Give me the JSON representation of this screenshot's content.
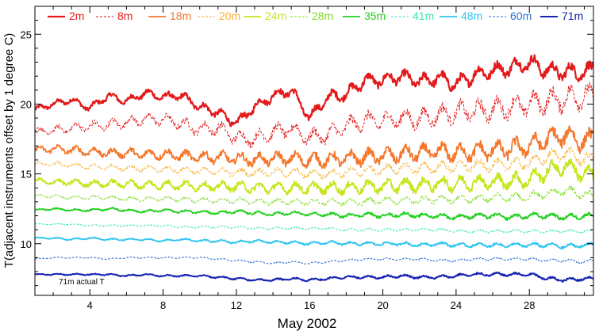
{
  "chart_data": {
    "type": "line",
    "title": "",
    "xlabel": "May 2002",
    "ylabel": "T(adjacent instruments offset by 1 degree C)",
    "xlim": [
      1,
      31.5
    ],
    "ylim": [
      6.3,
      27
    ],
    "x_ticks": [
      4,
      8,
      12,
      16,
      20,
      24,
      28
    ],
    "y_ticks": [
      10,
      15,
      20,
      25
    ],
    "annotation": "71m actual T",
    "series": [
      {
        "name": "2m",
        "color": "#e31a1c",
        "dash": "solid",
        "width": 2.2,
        "x": [
          1,
          2,
          3,
          4,
          5,
          6,
          7,
          8,
          9,
          10,
          11,
          12,
          13,
          14,
          15,
          16,
          17,
          18,
          19,
          20,
          21,
          22,
          23,
          24,
          25,
          26,
          27,
          28,
          29,
          30,
          31,
          31.5
        ],
        "values": [
          19.6,
          20.0,
          20.3,
          19.7,
          20.6,
          20.2,
          20.8,
          20.5,
          20.6,
          19.8,
          19.4,
          18.6,
          19.8,
          20.6,
          21.0,
          19.0,
          20.5,
          20.7,
          21.7,
          21.7,
          22.0,
          21.6,
          21.9,
          21.4,
          22.1,
          22.4,
          22.6,
          23.0,
          22.4,
          22.3,
          22.3,
          22.4
        ]
      },
      {
        "name": "8m",
        "color": "#e31a1c",
        "dash": "3,2",
        "width": 1.0,
        "x": [
          1,
          2,
          3,
          4,
          5,
          6,
          7,
          8,
          9,
          10,
          11,
          12,
          13,
          14,
          15,
          16,
          17,
          18,
          19,
          20,
          21,
          22,
          23,
          24,
          25,
          26,
          27,
          28,
          29,
          30,
          31,
          31.5
        ],
        "values": [
          18.0,
          18.1,
          18.3,
          18.4,
          18.5,
          18.7,
          18.9,
          18.9,
          18.6,
          18.2,
          18.3,
          17.6,
          17.5,
          18.0,
          18.2,
          17.6,
          17.8,
          18.4,
          18.8,
          18.8,
          19.0,
          18.9,
          19.2,
          19.4,
          19.5,
          19.6,
          19.8,
          20.0,
          20.2,
          20.4,
          20.6,
          20.4
        ]
      },
      {
        "name": "18m",
        "color": "#f4772b",
        "dash": "solid",
        "width": 1.8,
        "x": [
          1,
          2,
          3,
          4,
          5,
          6,
          7,
          8,
          9,
          10,
          11,
          12,
          13,
          14,
          15,
          16,
          17,
          18,
          19,
          20,
          21,
          22,
          23,
          24,
          25,
          26,
          27,
          28,
          29,
          30,
          31,
          31.5
        ],
        "values": [
          16.7,
          16.8,
          16.7,
          16.6,
          16.5,
          16.5,
          16.4,
          16.4,
          16.3,
          16.2,
          16.2,
          16.1,
          16.0,
          16.1,
          16.1,
          16.0,
          16.0,
          16.1,
          16.2,
          16.3,
          16.4,
          16.5,
          16.6,
          16.5,
          16.6,
          16.7,
          16.8,
          17.0,
          17.5,
          17.8,
          17.3,
          17.5
        ]
      },
      {
        "name": "20m",
        "color": "#f9b233",
        "dash": "3,2",
        "width": 1.0,
        "x": [
          1,
          2,
          3,
          4,
          5,
          6,
          7,
          8,
          9,
          10,
          11,
          12,
          13,
          14,
          15,
          16,
          17,
          18,
          19,
          20,
          21,
          22,
          23,
          24,
          25,
          26,
          27,
          28,
          29,
          30,
          31,
          31.5
        ],
        "values": [
          15.7,
          15.7,
          15.6,
          15.5,
          15.5,
          15.4,
          15.4,
          15.3,
          15.3,
          15.2,
          15.2,
          15.1,
          15.1,
          15.1,
          15.1,
          15.0,
          15.0,
          15.1,
          15.2,
          15.3,
          15.4,
          15.4,
          15.5,
          15.5,
          15.6,
          15.6,
          15.7,
          15.8,
          16.2,
          16.5,
          16.0,
          16.1
        ]
      },
      {
        "name": "24m",
        "color": "#c7e51d",
        "dash": "solid",
        "width": 1.8,
        "x": [
          1,
          2,
          3,
          4,
          5,
          6,
          7,
          8,
          9,
          10,
          11,
          12,
          13,
          14,
          15,
          16,
          17,
          18,
          19,
          20,
          21,
          22,
          23,
          24,
          25,
          26,
          27,
          28,
          29,
          30,
          31,
          31.5
        ],
        "values": [
          14.5,
          14.4,
          14.4,
          14.3,
          14.3,
          14.3,
          14.2,
          14.2,
          14.2,
          14.1,
          14.1,
          14.1,
          14.0,
          14.0,
          14.0,
          14.0,
          14.0,
          14.0,
          14.1,
          14.1,
          14.2,
          14.2,
          14.3,
          14.3,
          14.4,
          14.4,
          14.5,
          14.6,
          15.2,
          15.6,
          15.0,
          14.8
        ]
      },
      {
        "name": "28m",
        "color": "#7ddc1f",
        "dash": "3,2",
        "width": 1.0,
        "x": [
          1,
          2,
          3,
          4,
          5,
          6,
          7,
          8,
          9,
          10,
          11,
          12,
          13,
          14,
          15,
          16,
          17,
          18,
          19,
          20,
          21,
          22,
          23,
          24,
          25,
          26,
          27,
          28,
          29,
          30,
          31,
          31.5
        ],
        "values": [
          13.4,
          13.4,
          13.3,
          13.3,
          13.3,
          13.2,
          13.2,
          13.2,
          13.2,
          13.1,
          13.1,
          13.1,
          13.0,
          13.0,
          13.0,
          13.0,
          13.0,
          13.0,
          13.0,
          13.1,
          13.1,
          13.1,
          13.2,
          13.2,
          13.2,
          13.3,
          13.3,
          13.4,
          13.6,
          13.8,
          13.5,
          13.4
        ]
      },
      {
        "name": "35m",
        "color": "#22d11f",
        "dash": "solid",
        "width": 1.8,
        "x": [
          1,
          2,
          3,
          4,
          5,
          6,
          7,
          8,
          9,
          10,
          11,
          12,
          13,
          14,
          15,
          16,
          17,
          18,
          19,
          20,
          21,
          22,
          23,
          24,
          25,
          26,
          27,
          28,
          29,
          30,
          31,
          31.5
        ],
        "values": [
          12.4,
          12.5,
          12.4,
          12.4,
          12.5,
          12.4,
          12.3,
          12.4,
          12.3,
          12.3,
          12.2,
          12.3,
          12.2,
          12.1,
          12.2,
          12.1,
          12.1,
          12.0,
          12.1,
          12.0,
          12.1,
          12.0,
          12.0,
          11.9,
          12.0,
          12.0,
          11.9,
          12.0,
          12.0,
          11.9,
          12.0,
          12.0
        ]
      },
      {
        "name": "41m",
        "color": "#33e8b5",
        "dash": "3,2",
        "width": 1.0,
        "x": [
          1,
          2,
          3,
          4,
          5,
          6,
          7,
          8,
          9,
          10,
          11,
          12,
          13,
          14,
          15,
          16,
          17,
          18,
          19,
          20,
          21,
          22,
          23,
          24,
          25,
          26,
          27,
          28,
          29,
          30,
          31,
          31.5
        ],
        "values": [
          11.4,
          11.4,
          11.4,
          11.3,
          11.3,
          11.3,
          11.3,
          11.3,
          11.2,
          11.2,
          11.2,
          11.2,
          11.1,
          11.1,
          11.1,
          11.1,
          11.1,
          11.0,
          11.0,
          11.0,
          11.0,
          11.0,
          11.0,
          10.9,
          10.9,
          10.9,
          10.9,
          10.9,
          10.9,
          10.9,
          10.9,
          10.9
        ]
      },
      {
        "name": "48m",
        "color": "#2dc5ef",
        "dash": "solid",
        "width": 1.8,
        "x": [
          1,
          2,
          3,
          4,
          5,
          6,
          7,
          8,
          9,
          10,
          11,
          12,
          13,
          14,
          15,
          16,
          17,
          18,
          19,
          20,
          21,
          22,
          23,
          24,
          25,
          26,
          27,
          28,
          29,
          30,
          31,
          31.5
        ],
        "values": [
          10.4,
          10.4,
          10.3,
          10.4,
          10.3,
          10.3,
          10.3,
          10.2,
          10.3,
          10.2,
          10.2,
          10.1,
          10.2,
          10.1,
          10.1,
          10.0,
          10.1,
          10.0,
          10.0,
          10.0,
          10.0,
          9.9,
          10.0,
          9.9,
          9.9,
          9.9,
          9.9,
          9.9,
          9.9,
          9.8,
          9.9,
          9.9
        ]
      },
      {
        "name": "60m",
        "color": "#2b6dd6",
        "dash": "3,2",
        "width": 1.0,
        "x": [
          1,
          2,
          3,
          4,
          5,
          6,
          7,
          8,
          9,
          10,
          11,
          12,
          13,
          14,
          15,
          16,
          17,
          18,
          19,
          20,
          21,
          22,
          23,
          24,
          25,
          26,
          27,
          28,
          29,
          30,
          31,
          31.5
        ],
        "values": [
          8.9,
          9.0,
          9.0,
          9.0,
          8.9,
          9.0,
          9.0,
          9.0,
          9.0,
          9.0,
          8.9,
          8.8,
          8.7,
          8.6,
          8.7,
          8.6,
          8.7,
          8.8,
          8.9,
          8.9,
          8.9,
          8.9,
          8.8,
          8.8,
          8.9,
          8.9,
          8.9,
          8.9,
          8.8,
          8.8,
          8.7,
          8.8
        ]
      },
      {
        "name": "71m",
        "color": "#1622b3",
        "dash": "solid",
        "width": 2.0,
        "x": [
          1,
          2,
          3,
          4,
          5,
          6,
          7,
          8,
          9,
          10,
          11,
          12,
          13,
          14,
          15,
          16,
          17,
          18,
          19,
          20,
          21,
          22,
          23,
          24,
          25,
          26,
          27,
          28,
          29,
          30,
          31,
          31.5
        ],
        "values": [
          7.8,
          7.8,
          7.8,
          7.8,
          7.8,
          7.7,
          7.8,
          7.7,
          7.7,
          7.7,
          7.6,
          7.5,
          7.4,
          7.4,
          7.5,
          7.4,
          7.5,
          7.6,
          7.6,
          7.6,
          7.7,
          7.6,
          7.6,
          7.7,
          7.8,
          7.8,
          7.8,
          7.8,
          7.5,
          7.4,
          7.5,
          7.5
        ]
      }
    ]
  }
}
